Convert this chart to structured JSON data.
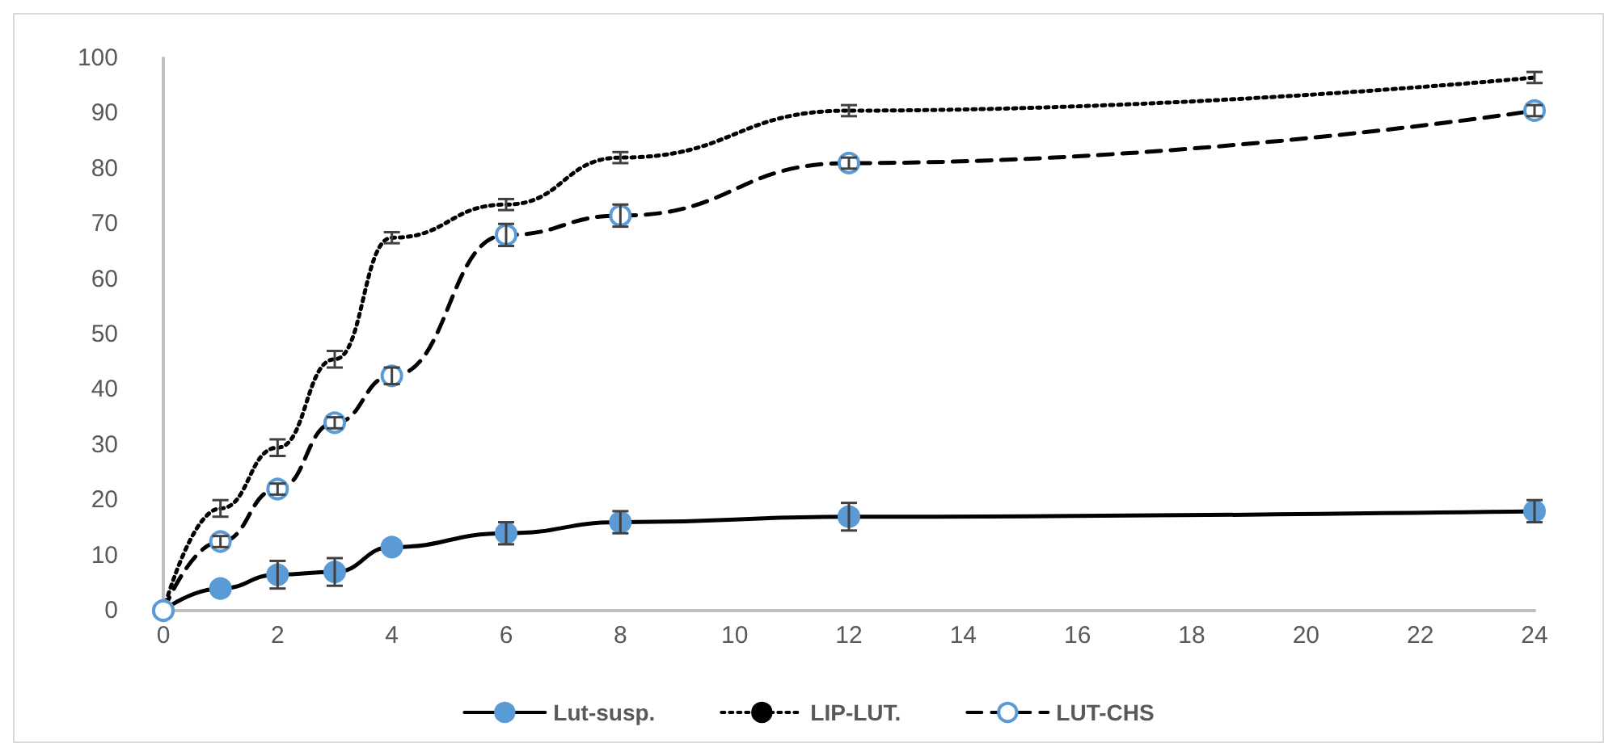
{
  "chart_data": {
    "type": "line",
    "x": [
      0,
      1,
      2,
      3,
      4,
      6,
      8,
      12,
      24
    ],
    "xlim": [
      0,
      24
    ],
    "xticks": [
      0,
      2,
      4,
      6,
      8,
      10,
      12,
      14,
      16,
      18,
      20,
      22,
      24
    ],
    "ylim": [
      0,
      100
    ],
    "yticks": [
      0,
      10,
      20,
      30,
      40,
      50,
      60,
      70,
      80,
      90,
      100
    ],
    "grid": false,
    "legend": "bottom",
    "series": [
      {
        "name": "Lut-susp.",
        "color": "#5b9bd5",
        "marker": "circle",
        "line_style": "solid",
        "values": [
          0,
          4,
          6.5,
          7,
          11.5,
          14,
          16,
          17,
          18
        ],
        "errors": [
          null,
          null,
          2.5,
          2.5,
          null,
          2,
          2,
          2.5,
          2
        ]
      },
      {
        "name": "LIP-LUT.",
        "color": "#000000",
        "marker": "none",
        "line_style": "dotted",
        "values": [
          0,
          18.5,
          29.5,
          45.5,
          67.5,
          73.5,
          82,
          90.5,
          96.5
        ],
        "errors": [
          null,
          1.5,
          1.5,
          1.5,
          1,
          1,
          1,
          1,
          1
        ]
      },
      {
        "name": "LUT-CHS",
        "color": "#5b9bd5",
        "marker": "open circle",
        "line_style": "dashed",
        "values": [
          0,
          12.5,
          22,
          34,
          42.5,
          68,
          71.5,
          81,
          90.5
        ],
        "errors": [
          null,
          1,
          1,
          1,
          1.5,
          2,
          2,
          1,
          1
        ]
      }
    ]
  }
}
